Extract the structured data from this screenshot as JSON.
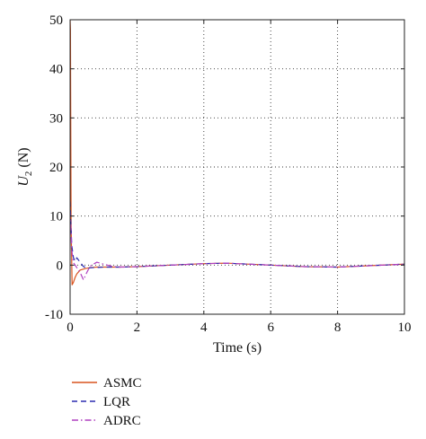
{
  "chart_data": {
    "type": "line",
    "xlabel": "Time (s)",
    "ylabel": {
      "base": "U",
      "sub": "2",
      "unit": " (N)"
    },
    "xlim": [
      0,
      10
    ],
    "ylim": [
      -10,
      50
    ],
    "xticks": [
      0,
      2,
      4,
      6,
      8,
      10
    ],
    "yticks": [
      -10,
      0,
      10,
      20,
      30,
      40,
      50
    ],
    "grid": true,
    "grid_style": "dotted",
    "legend_placement": "below-left",
    "series": [
      {
        "name": "ASMC",
        "color": "#d9531e",
        "dash": "solid",
        "x": [
          0,
          0.01,
          0.03,
          0.06,
          0.1,
          0.15,
          0.2,
          0.3,
          0.45,
          0.6,
          0.8,
          1.0,
          1.5,
          2,
          3,
          4,
          4.7,
          5,
          6,
          7,
          8,
          9,
          10
        ],
        "y": [
          50,
          48,
          8,
          -4,
          -3.5,
          -2.5,
          -1.8,
          -1.0,
          -0.7,
          -0.5,
          -0.4,
          -0.4,
          -0.4,
          -0.3,
          0.0,
          0.3,
          0.4,
          0.3,
          0.0,
          -0.3,
          -0.4,
          -0.1,
          0.2
        ]
      },
      {
        "name": "LQR",
        "color": "#2b2bb0",
        "dash": "6,4",
        "x": [
          0,
          0.02,
          0.05,
          0.1,
          0.15,
          0.2,
          0.3,
          0.4,
          0.5,
          0.7,
          1.0,
          1.5,
          2,
          3,
          4,
          4.7,
          5,
          6,
          7,
          8,
          9,
          10
        ],
        "y": [
          13,
          9,
          4,
          1.5,
          0.8,
          1.5,
          0.6,
          -0.3,
          -0.6,
          -0.5,
          -0.4,
          -0.4,
          -0.3,
          0.0,
          0.3,
          0.4,
          0.3,
          0.0,
          -0.3,
          -0.4,
          -0.1,
          0.2
        ]
      },
      {
        "name": "ADRC",
        "color": "#b040c0",
        "dash": "7,3,1.5,3",
        "x": [
          0,
          0.02,
          0.05,
          0.1,
          0.2,
          0.3,
          0.4,
          0.5,
          0.6,
          0.8,
          1.0,
          1.3,
          1.6,
          2,
          3,
          4,
          4.7,
          5,
          6,
          7,
          8,
          9,
          10
        ],
        "y": [
          11,
          8,
          3,
          0.5,
          -0.5,
          -1.5,
          -3.0,
          -1.5,
          -0.2,
          0.6,
          0.2,
          -0.3,
          -0.4,
          -0.3,
          0.0,
          0.3,
          0.4,
          0.3,
          0.0,
          -0.3,
          -0.4,
          -0.1,
          0.2
        ]
      }
    ]
  }
}
